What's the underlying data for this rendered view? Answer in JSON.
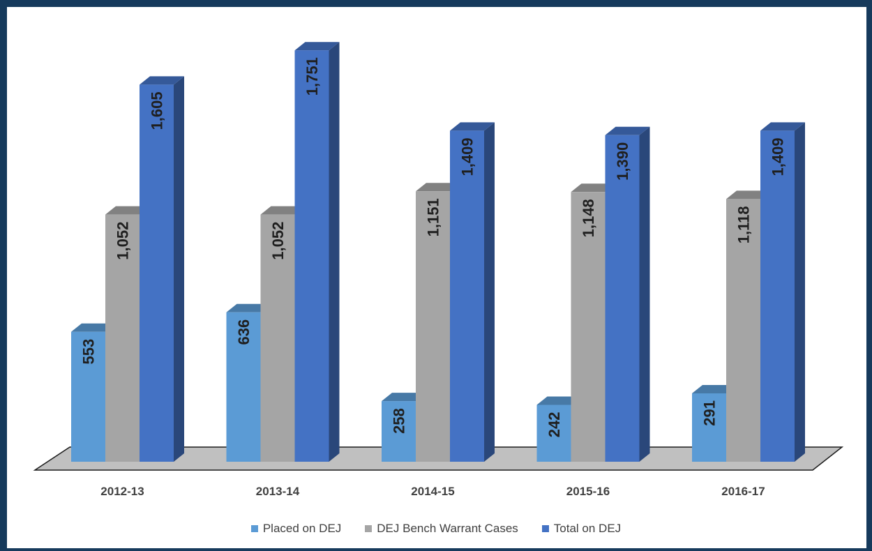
{
  "chart_data": {
    "type": "bar",
    "title": "",
    "xlabel": "",
    "ylabel": "",
    "categories": [
      "2012-13",
      "2013-14",
      "2014-15",
      "2015-16",
      "2016-17"
    ],
    "series": [
      {
        "name": "Placed on DEJ",
        "values": [
          553,
          636,
          258,
          242,
          291
        ],
        "labels": [
          "553",
          "636",
          "258",
          "242",
          "291"
        ],
        "color": "#5b9bd5"
      },
      {
        "name": "DEJ Bench Warrant Cases",
        "values": [
          1052,
          1052,
          1151,
          1148,
          1118
        ],
        "labels": [
          "1,052",
          "1,052",
          "1,151",
          "1,148",
          "1,118"
        ],
        "color": "#a5a5a5"
      },
      {
        "name": "Total on DEJ",
        "values": [
          1605,
          1751,
          1409,
          1390,
          1409
        ],
        "labels": [
          "1,605",
          "1,751",
          "1,409",
          "1,390",
          "1,409"
        ],
        "color": "#4472c4"
      }
    ],
    "ylim": [
      0,
      1900
    ],
    "grid": false,
    "legend": "bottom",
    "style": "3d-column"
  }
}
